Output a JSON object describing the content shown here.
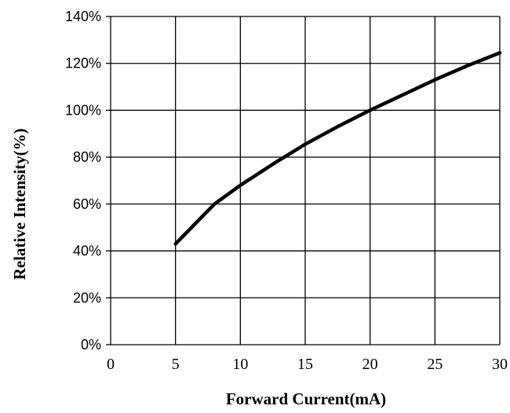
{
  "chart_data": {
    "type": "line",
    "title": "",
    "xlabel": "Forward Current(mA)",
    "ylabel": "Relative  Intensity(%)",
    "xlim": [
      0,
      30
    ],
    "ylim": [
      0,
      140
    ],
    "x_ticks": [
      0,
      5,
      10,
      15,
      20,
      25,
      30
    ],
    "y_ticks": [
      0,
      20,
      40,
      60,
      80,
      100,
      120,
      140
    ],
    "x_tick_labels": [
      "0",
      "5",
      "10",
      "15",
      "20",
      "25",
      "30"
    ],
    "y_tick_labels": [
      "0%",
      "20%",
      "40%",
      "60%",
      "80%",
      "100%",
      "120%",
      "140%"
    ],
    "grid": true,
    "series": [
      {
        "color": "#000000",
        "x": [
          5,
          8,
          10,
          12.5,
          15,
          17.5,
          20,
          22.5,
          25,
          27.5,
          30
        ],
        "y": [
          43,
          60,
          68,
          77,
          85.5,
          93,
          100,
          106.5,
          113,
          119,
          124.5
        ]
      }
    ]
  }
}
